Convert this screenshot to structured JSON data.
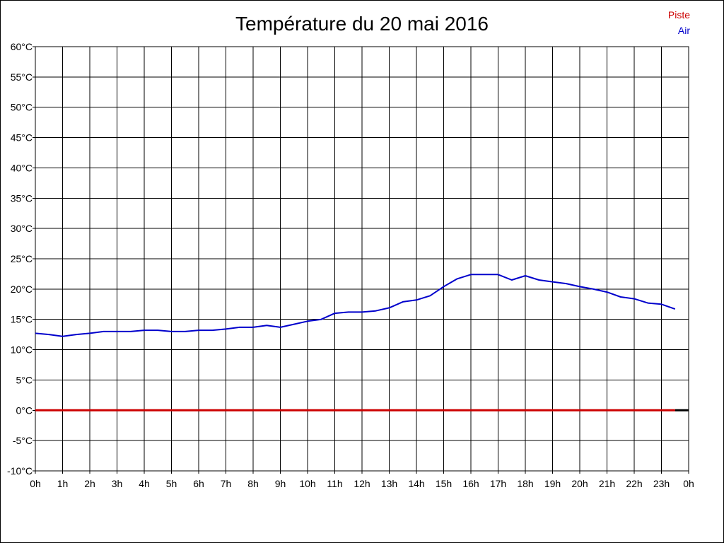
{
  "chart_data": {
    "type": "line",
    "title": "Température du 20 mai 2016",
    "ylim": [
      -10,
      60
    ],
    "xlim": [
      0,
      24
    ],
    "grid": true,
    "legend_position": "top-right",
    "y_ticks": [
      60,
      55,
      50,
      45,
      40,
      35,
      30,
      25,
      20,
      15,
      10,
      5,
      0,
      -5,
      -10
    ],
    "y_tick_labels": [
      "60°C",
      "55°C",
      "50°C",
      "45°C",
      "40°C",
      "35°C",
      "30°C",
      "25°C",
      "20°C",
      "15°C",
      "10°C",
      "5°C",
      "0°C",
      "-5°C",
      "-10°C"
    ],
    "x_ticks": [
      0,
      1,
      2,
      3,
      4,
      5,
      6,
      7,
      8,
      9,
      10,
      11,
      12,
      13,
      14,
      15,
      16,
      17,
      18,
      19,
      20,
      21,
      22,
      23,
      24
    ],
    "x_tick_labels": [
      "0h",
      "1h",
      "2h",
      "3h",
      "4h",
      "5h",
      "6h",
      "7h",
      "8h",
      "9h",
      "10h",
      "11h",
      "12h",
      "13h",
      "14h",
      "15h",
      "16h",
      "17h",
      "18h",
      "19h",
      "20h",
      "21h",
      "22h",
      "23h",
      "0h"
    ],
    "series": [
      {
        "name": "Piste",
        "color": "#cc0000",
        "x": [
          0,
          1,
          2,
          3,
          4,
          5,
          6,
          7,
          8,
          9,
          10,
          11,
          12,
          13,
          14,
          15,
          16,
          17,
          18,
          19,
          20,
          21,
          22,
          23,
          23.5
        ],
        "y": [
          0,
          0,
          0,
          0,
          0,
          0,
          0,
          0,
          0,
          0,
          0,
          0,
          0,
          0,
          0,
          0,
          0,
          0,
          0,
          0,
          0,
          0,
          0,
          0,
          0
        ]
      },
      {
        "name": "Air",
        "color": "#0000cc",
        "x": [
          0,
          0.5,
          1,
          1.5,
          2,
          2.5,
          3,
          3.5,
          4,
          4.5,
          5,
          5.5,
          6,
          6.5,
          7,
          7.5,
          8,
          8.5,
          9,
          9.5,
          10,
          10.5,
          11,
          11.5,
          12,
          12.5,
          13,
          13.5,
          14,
          14.5,
          15,
          15.5,
          16,
          16.5,
          17,
          17.5,
          18,
          18.5,
          19,
          19.5,
          20,
          20.5,
          21,
          21.5,
          22,
          22.5,
          23,
          23.5
        ],
        "y": [
          12.7,
          12.5,
          12.2,
          12.5,
          12.7,
          13.0,
          13.0,
          13.0,
          13.2,
          13.2,
          13.0,
          13.0,
          13.2,
          13.2,
          13.4,
          13.7,
          13.7,
          14.0,
          13.7,
          14.2,
          14.7,
          15.0,
          16.0,
          16.2,
          16.2,
          16.4,
          16.9,
          17.9,
          18.2,
          18.9,
          20.4,
          21.7,
          22.4,
          22.4,
          22.4,
          21.5,
          22.2,
          21.5,
          21.2,
          20.9,
          20.4,
          20.0,
          19.5,
          18.7,
          18.4,
          17.7,
          17.5,
          16.7
        ]
      }
    ]
  }
}
